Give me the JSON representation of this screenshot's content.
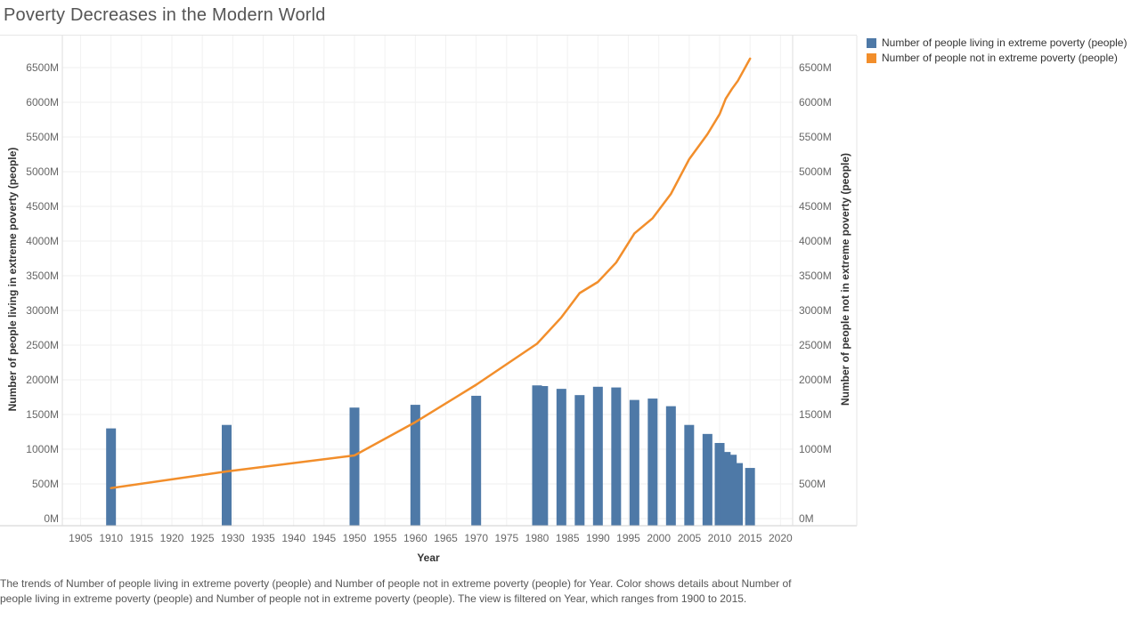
{
  "title": "Poverty Decreases in the Modern World",
  "legend": [
    {
      "label": "Number of people living in extreme poverty (people)",
      "color": "#4e79a7"
    },
    {
      "label": "Number of people not in extreme poverty (people)",
      "color": "#f28e2b"
    }
  ],
  "caption": "The trends of Number of people living in extreme poverty (people) and Number of people not in extreme poverty (people) for Year.  Color shows details about Number of people living in extreme poverty (people) and Number of people not in extreme poverty (people). The view is filtered on Year, which ranges from 1900 to 2015.",
  "chart_data": {
    "type": "bar",
    "xlabel": "Year",
    "ylabel_left": "Number of people living in extreme poverty (people)",
    "ylabel_right": "Number of people not in extreme poverty (people)",
    "xlim": [
      1902,
      2022
    ],
    "ylim": [
      0,
      6800
    ],
    "x_ticks": [
      1905,
      1910,
      1915,
      1920,
      1925,
      1930,
      1935,
      1940,
      1945,
      1950,
      1955,
      1960,
      1965,
      1970,
      1975,
      1980,
      1985,
      1990,
      1995,
      2000,
      2005,
      2010,
      2015,
      2020
    ],
    "y_ticks": [
      0,
      500,
      1000,
      1500,
      2000,
      2500,
      3000,
      3500,
      4000,
      4500,
      5000,
      5500,
      6000,
      6500
    ],
    "y_tick_labels": [
      "0M",
      "500M",
      "1000M",
      "1500M",
      "2000M",
      "2500M",
      "3000M",
      "3500M",
      "4000M",
      "4500M",
      "5000M",
      "5500M",
      "6000M",
      "6500M"
    ],
    "grid": true,
    "series": [
      {
        "name": "Number of people living in extreme poverty (people)",
        "type": "bar",
        "color": "#4e79a7",
        "x": [
          1910,
          1929,
          1950,
          1960,
          1970,
          1980,
          1981,
          1984,
          1987,
          1990,
          1993,
          1996,
          1999,
          2002,
          2005,
          2008,
          2010,
          2011,
          2012,
          2013,
          2015
        ],
        "values": [
          1300,
          1350,
          1600,
          1640,
          1770,
          1920,
          1910,
          1870,
          1780,
          1900,
          1890,
          1710,
          1730,
          1620,
          1350,
          1220,
          1090,
          960,
          920,
          800,
          730
        ]
      },
      {
        "name": "Number of people not in extreme poverty (people)",
        "type": "line",
        "color": "#f28e2b",
        "x": [
          1910,
          1929,
          1950,
          1960,
          1970,
          1980,
          1984,
          1987,
          1990,
          1993,
          1996,
          1999,
          2002,
          2005,
          2008,
          2010,
          2011,
          2012,
          2013,
          2015
        ],
        "values": [
          440,
          680,
          910,
          1390,
          1930,
          2520,
          2900,
          3250,
          3410,
          3690,
          4110,
          4330,
          4680,
          5180,
          5540,
          5830,
          6050,
          6190,
          6310,
          6630
        ]
      }
    ]
  }
}
